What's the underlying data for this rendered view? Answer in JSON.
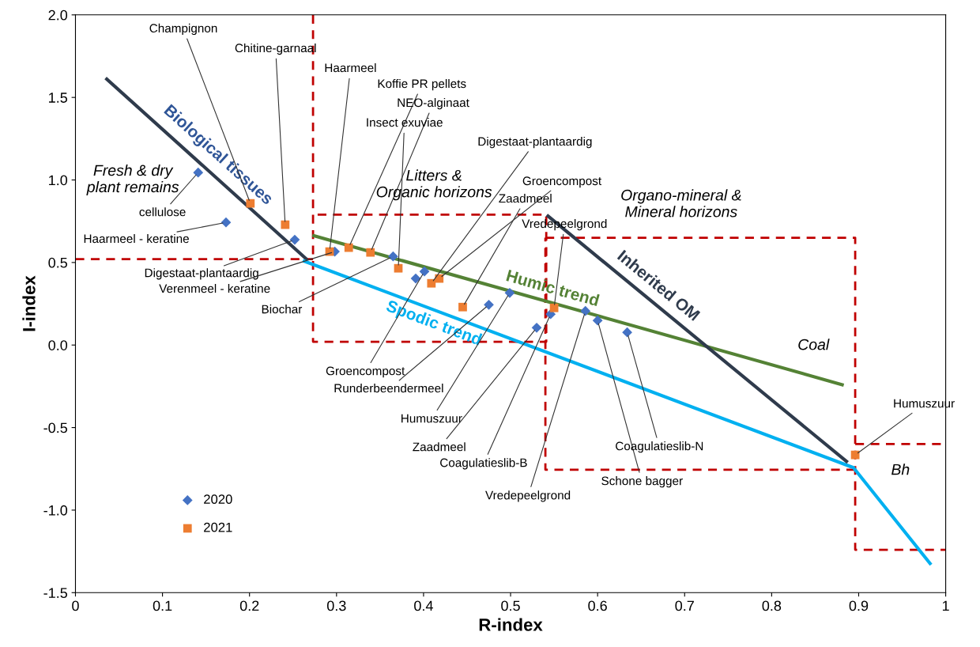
{
  "chart_data": {
    "type": "scatter",
    "xlabel": "R-index",
    "ylabel": "I-index",
    "xlim": [
      0,
      1
    ],
    "xticks": [
      0,
      0.1,
      0.2,
      0.3,
      0.4,
      0.5,
      0.6,
      0.7,
      0.8,
      0.9,
      1
    ],
    "ylim": [
      -1.5,
      2.0
    ],
    "yticks": [
      {
        "value": -1.5,
        "label": "-1.5"
      },
      {
        "value": -1.0,
        "label": "-1.0"
      },
      {
        "value": -0.5,
        "label": "-0.5"
      },
      {
        "value": 0.0,
        "label": "0.0"
      },
      {
        "value": 0.5,
        "label": "0.5"
      },
      {
        "value": 1.0,
        "label": "1.0"
      },
      {
        "value": 1.5,
        "label": "1.5"
      },
      {
        "value": 2.0,
        "label": "2.0"
      }
    ],
    "grid": false,
    "legend": "bottom left",
    "series": [
      {
        "name": "2020",
        "marker": "diamond",
        "color": "#4472c4",
        "x": [
          0.141,
          0.173,
          0.252,
          0.298,
          0.365,
          0.391,
          0.401,
          0.475,
          0.499,
          0.53,
          0.546,
          0.586,
          0.6,
          0.634
        ],
        "values": [
          1.045,
          0.743,
          0.638,
          0.566,
          0.537,
          0.403,
          0.446,
          0.244,
          0.316,
          0.105,
          0.187,
          0.206,
          0.149,
          0.077
        ]
      },
      {
        "name": "2021",
        "marker": "square",
        "color": "#ed7d31",
        "x": [
          0.201,
          0.241,
          0.292,
          0.314,
          0.339,
          0.371,
          0.409,
          0.418,
          0.445,
          0.55,
          0.896
        ],
        "values": [
          0.858,
          0.729,
          0.566,
          0.59,
          0.561,
          0.465,
          0.374,
          0.403,
          0.23,
          0.225,
          -0.666
        ]
      },
      {
        "name": "Biological tissues",
        "type": "line",
        "line_style": "solid",
        "color": "#2f3b4c",
        "x": [
          0.036,
          0.265
        ],
        "values": [
          1.611,
          0.523
        ]
      },
      {
        "name": "Humic trend",
        "type": "line",
        "line_style": "solid",
        "color": "#548235",
        "x": [
          0.274,
          0.881
        ],
        "values": [
          0.662,
          -0.24
        ]
      },
      {
        "name": "Spodic trend",
        "type": "line",
        "line_style": "solid",
        "color": "#00b0f0",
        "x": [
          0.263,
          0.894,
          0.982
        ],
        "values": [
          0.508,
          -0.743,
          -1.323
        ]
      },
      {
        "name": "Inherited OM",
        "type": "line",
        "line_style": "solid",
        "color": "#2f3b4c",
        "x": [
          0.543,
          0.886
        ],
        "values": [
          0.781,
          -0.705
        ]
      },
      {
        "type": "line",
        "line_style": "dashed",
        "color": "#c00000",
        "x": [
          0,
          0.273,
          null,
          0.273,
          0.273,
          0.541,
          0.541,
          0.273
        ],
        "values": [
          0.52,
          0.52,
          null,
          2.0,
          0.02,
          0.02,
          0.79,
          0.79
        ]
      },
      {
        "type": "line",
        "line_style": "dashed",
        "color": "#c00000",
        "x": [
          0.54,
          0.896,
          0.896,
          1.0,
          null,
          0.896,
          0.54,
          0.54,
          null,
          0.896,
          1.0
        ],
        "values": [
          0.65,
          0.65,
          -1.24,
          -1.24,
          null,
          -0.755,
          -0.755,
          0.65,
          null,
          -0.6,
          -0.6
        ]
      }
    ],
    "annotations": [
      {
        "text": "Champignon",
        "x": 0.201,
        "y": 0.858
      },
      {
        "text": "Chitine-garnaal",
        "x": 0.241,
        "y": 0.729
      },
      {
        "text": "Haarmeel",
        "x": 0.292,
        "y": 0.566
      },
      {
        "text": "Koffie PR pellets",
        "x": 0.314,
        "y": 0.59
      },
      {
        "text": "NEO-alginaat",
        "x": 0.339,
        "y": 0.561
      },
      {
        "text": "Insect exuviae",
        "x": 0.371,
        "y": 0.465
      },
      {
        "text": "Digestaat-plantaardig",
        "x": 0.409,
        "y": 0.374
      },
      {
        "text": "Groencompost",
        "x": 0.418,
        "y": 0.403
      },
      {
        "text": "Zaadmeel",
        "x": 0.445,
        "y": 0.23
      },
      {
        "text": "Vredepeelgrond",
        "x": 0.55,
        "y": 0.225
      },
      {
        "text": "Humuszuur",
        "x": 0.896,
        "y": -0.666
      },
      {
        "text": "cellulose",
        "x": 0.141,
        "y": 1.045
      },
      {
        "text": "Haarmeel - keratine",
        "x": 0.173,
        "y": 0.743
      },
      {
        "text": "Digestaat-plantaardig",
        "x": 0.252,
        "y": 0.638
      },
      {
        "text": "Verenmeel - keratine",
        "x": 0.298,
        "y": 0.566
      },
      {
        "text": "Biochar",
        "x": 0.365,
        "y": 0.537
      },
      {
        "text": "Groencompost",
        "x": 0.401,
        "y": 0.446
      },
      {
        "text": "Runderbeendermeel",
        "x": 0.475,
        "y": 0.244
      },
      {
        "text": "Humuszuur",
        "x": 0.499,
        "y": 0.316
      },
      {
        "text": "Zaadmeel",
        "x": 0.53,
        "y": 0.105
      },
      {
        "text": "Coagulatieslib-B",
        "x": 0.546,
        "y": 0.187
      },
      {
        "text": "Vredepeelgrond",
        "x": 0.586,
        "y": 0.206
      },
      {
        "text": "Schone bagger",
        "x": 0.6,
        "y": 0.149
      },
      {
        "text": "Coagulatieslib-N",
        "x": 0.634,
        "y": 0.077
      },
      "Fresh & dry\nplant remains",
      "Litters &\nOrganic horizons",
      "Organo-mineral &\nMineral horizons",
      "Coal",
      "Bh"
    ]
  }
}
